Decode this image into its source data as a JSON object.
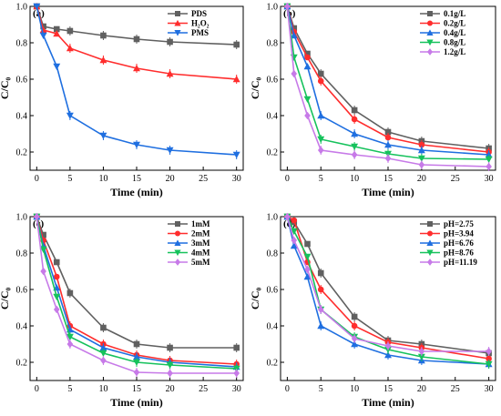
{
  "chart_data": [
    {
      "type": "line",
      "panel_label": "(a)",
      "xlabel": "Time (min)",
      "ylabel": "C/C₀",
      "xlim": [
        -1,
        31
      ],
      "ylim": [
        0.1,
        1.0
      ],
      "xticks": [
        0,
        5,
        10,
        15,
        20,
        25,
        30
      ],
      "yticks": [
        0.2,
        0.4,
        0.6,
        0.8,
        1.0
      ],
      "ytick_labels": [
        "0.2",
        "0.4",
        "0.6",
        "0.8",
        "1.0"
      ],
      "legend_position": "top-right",
      "x": [
        0,
        1,
        3,
        5,
        10,
        15,
        20,
        30
      ],
      "series": [
        {
          "name": "PDS",
          "color": "#606060",
          "marker": "square",
          "values": [
            1.0,
            0.89,
            0.875,
            0.865,
            0.84,
            0.82,
            0.805,
            0.79
          ]
        },
        {
          "name": "H₂O₂",
          "color": "#ff2d2d",
          "marker": "triangle",
          "values": [
            1.0,
            0.87,
            0.85,
            0.77,
            0.705,
            0.66,
            0.63,
            0.6
          ]
        },
        {
          "name": "PMS",
          "color": "#1f6fe0",
          "marker": "triangle-down",
          "values": [
            1.0,
            0.84,
            0.67,
            0.4,
            0.29,
            0.24,
            0.21,
            0.185
          ]
        }
      ]
    },
    {
      "type": "line",
      "panel_label": "(b)",
      "xlabel": "Time (min)",
      "ylabel": "C/C₀",
      "xlim": [
        -1,
        31
      ],
      "ylim": [
        0.1,
        1.0
      ],
      "xticks": [
        0,
        5,
        10,
        15,
        20,
        25,
        30
      ],
      "yticks": [
        0.2,
        0.4,
        0.6,
        0.8,
        1.0
      ],
      "ytick_labels": [
        "0.2",
        "0.4",
        "0.6",
        "0.8",
        "1.0"
      ],
      "legend_position": "top-right",
      "x": [
        0,
        1,
        3,
        5,
        10,
        15,
        20,
        30
      ],
      "series": [
        {
          "name": "0.1g/L",
          "color": "#606060",
          "marker": "square",
          "values": [
            1.0,
            0.88,
            0.74,
            0.63,
            0.43,
            0.31,
            0.26,
            0.22
          ]
        },
        {
          "name": "0.2g/L",
          "color": "#ff2d2d",
          "marker": "circle",
          "values": [
            1.0,
            0.86,
            0.72,
            0.59,
            0.38,
            0.28,
            0.24,
            0.2
          ]
        },
        {
          "name": "0.4g/L",
          "color": "#1f6fe0",
          "marker": "triangle",
          "values": [
            1.0,
            0.84,
            0.67,
            0.4,
            0.3,
            0.24,
            0.21,
            0.185
          ]
        },
        {
          "name": "0.8g/L",
          "color": "#16c25c",
          "marker": "triangle-down",
          "values": [
            1.0,
            0.72,
            0.49,
            0.27,
            0.23,
            0.19,
            0.165,
            0.16
          ]
        },
        {
          "name": "1.2g/L",
          "color": "#c77ae8",
          "marker": "diamond",
          "values": [
            1.0,
            0.63,
            0.4,
            0.21,
            0.185,
            0.165,
            0.13,
            0.12
          ]
        }
      ]
    },
    {
      "type": "line",
      "panel_label": "(c)",
      "xlabel": "Time (min)",
      "ylabel": "C/C₀",
      "xlim": [
        -1,
        31
      ],
      "ylim": [
        0.1,
        1.0
      ],
      "xticks": [
        0,
        5,
        10,
        15,
        20,
        25,
        30
      ],
      "yticks": [
        0.2,
        0.4,
        0.6,
        0.8,
        1.0
      ],
      "ytick_labels": [
        "0.2",
        "0.4",
        "0.6",
        "0.8",
        "1.0"
      ],
      "legend_position": "top-right",
      "x": [
        0,
        1,
        3,
        5,
        10,
        15,
        20,
        30
      ],
      "series": [
        {
          "name": "1mM",
          "color": "#606060",
          "marker": "square",
          "values": [
            1.0,
            0.9,
            0.75,
            0.58,
            0.39,
            0.3,
            0.28,
            0.28
          ]
        },
        {
          "name": "2mM",
          "color": "#ff2d2d",
          "marker": "circle",
          "values": [
            1.0,
            0.87,
            0.67,
            0.4,
            0.3,
            0.24,
            0.21,
            0.19
          ]
        },
        {
          "name": "3mM",
          "color": "#1f6fe0",
          "marker": "triangle",
          "values": [
            1.0,
            0.84,
            0.61,
            0.38,
            0.28,
            0.23,
            0.2,
            0.175
          ]
        },
        {
          "name": "4mM",
          "color": "#16c25c",
          "marker": "triangle-down",
          "values": [
            1.0,
            0.82,
            0.56,
            0.34,
            0.25,
            0.2,
            0.185,
            0.165
          ]
        },
        {
          "name": "5mM",
          "color": "#c77ae8",
          "marker": "diamond",
          "values": [
            1.0,
            0.7,
            0.49,
            0.3,
            0.21,
            0.145,
            0.14,
            0.14
          ]
        }
      ]
    },
    {
      "type": "line",
      "panel_label": "(d)",
      "xlabel": "Time (min)",
      "ylabel": "C/C₀",
      "xlim": [
        -1,
        31
      ],
      "ylim": [
        0.1,
        1.0
      ],
      "xticks": [
        0,
        5,
        10,
        15,
        20,
        25,
        30
      ],
      "yticks": [
        0.2,
        0.4,
        0.6,
        0.8,
        1.0
      ],
      "ytick_labels": [
        "0.2",
        "0.4",
        "0.6",
        "0.8",
        "1.0"
      ],
      "legend_position": "top-right",
      "x": [
        0,
        1,
        3,
        5,
        10,
        15,
        20,
        30
      ],
      "series": [
        {
          "name": "pH=2.75",
          "color": "#606060",
          "marker": "square",
          "values": [
            1.0,
            0.97,
            0.85,
            0.69,
            0.45,
            0.32,
            0.3,
            0.25
          ]
        },
        {
          "name": "pH=3.94",
          "color": "#ff2d2d",
          "marker": "circle",
          "values": [
            1.0,
            0.98,
            0.75,
            0.6,
            0.4,
            0.31,
            0.28,
            0.22
          ]
        },
        {
          "name": "pH=6.76",
          "color": "#1f6fe0",
          "marker": "triangle",
          "values": [
            1.0,
            0.84,
            0.67,
            0.4,
            0.3,
            0.24,
            0.21,
            0.19
          ]
        },
        {
          "name": "pH=8.76",
          "color": "#16c25c",
          "marker": "triangle-down",
          "values": [
            1.0,
            0.92,
            0.78,
            0.49,
            0.34,
            0.27,
            0.23,
            0.19
          ]
        },
        {
          "name": "pH=11.19",
          "color": "#c77ae8",
          "marker": "diamond",
          "values": [
            1.0,
            0.87,
            0.71,
            0.49,
            0.33,
            0.29,
            0.26,
            0.26
          ]
        }
      ]
    }
  ]
}
